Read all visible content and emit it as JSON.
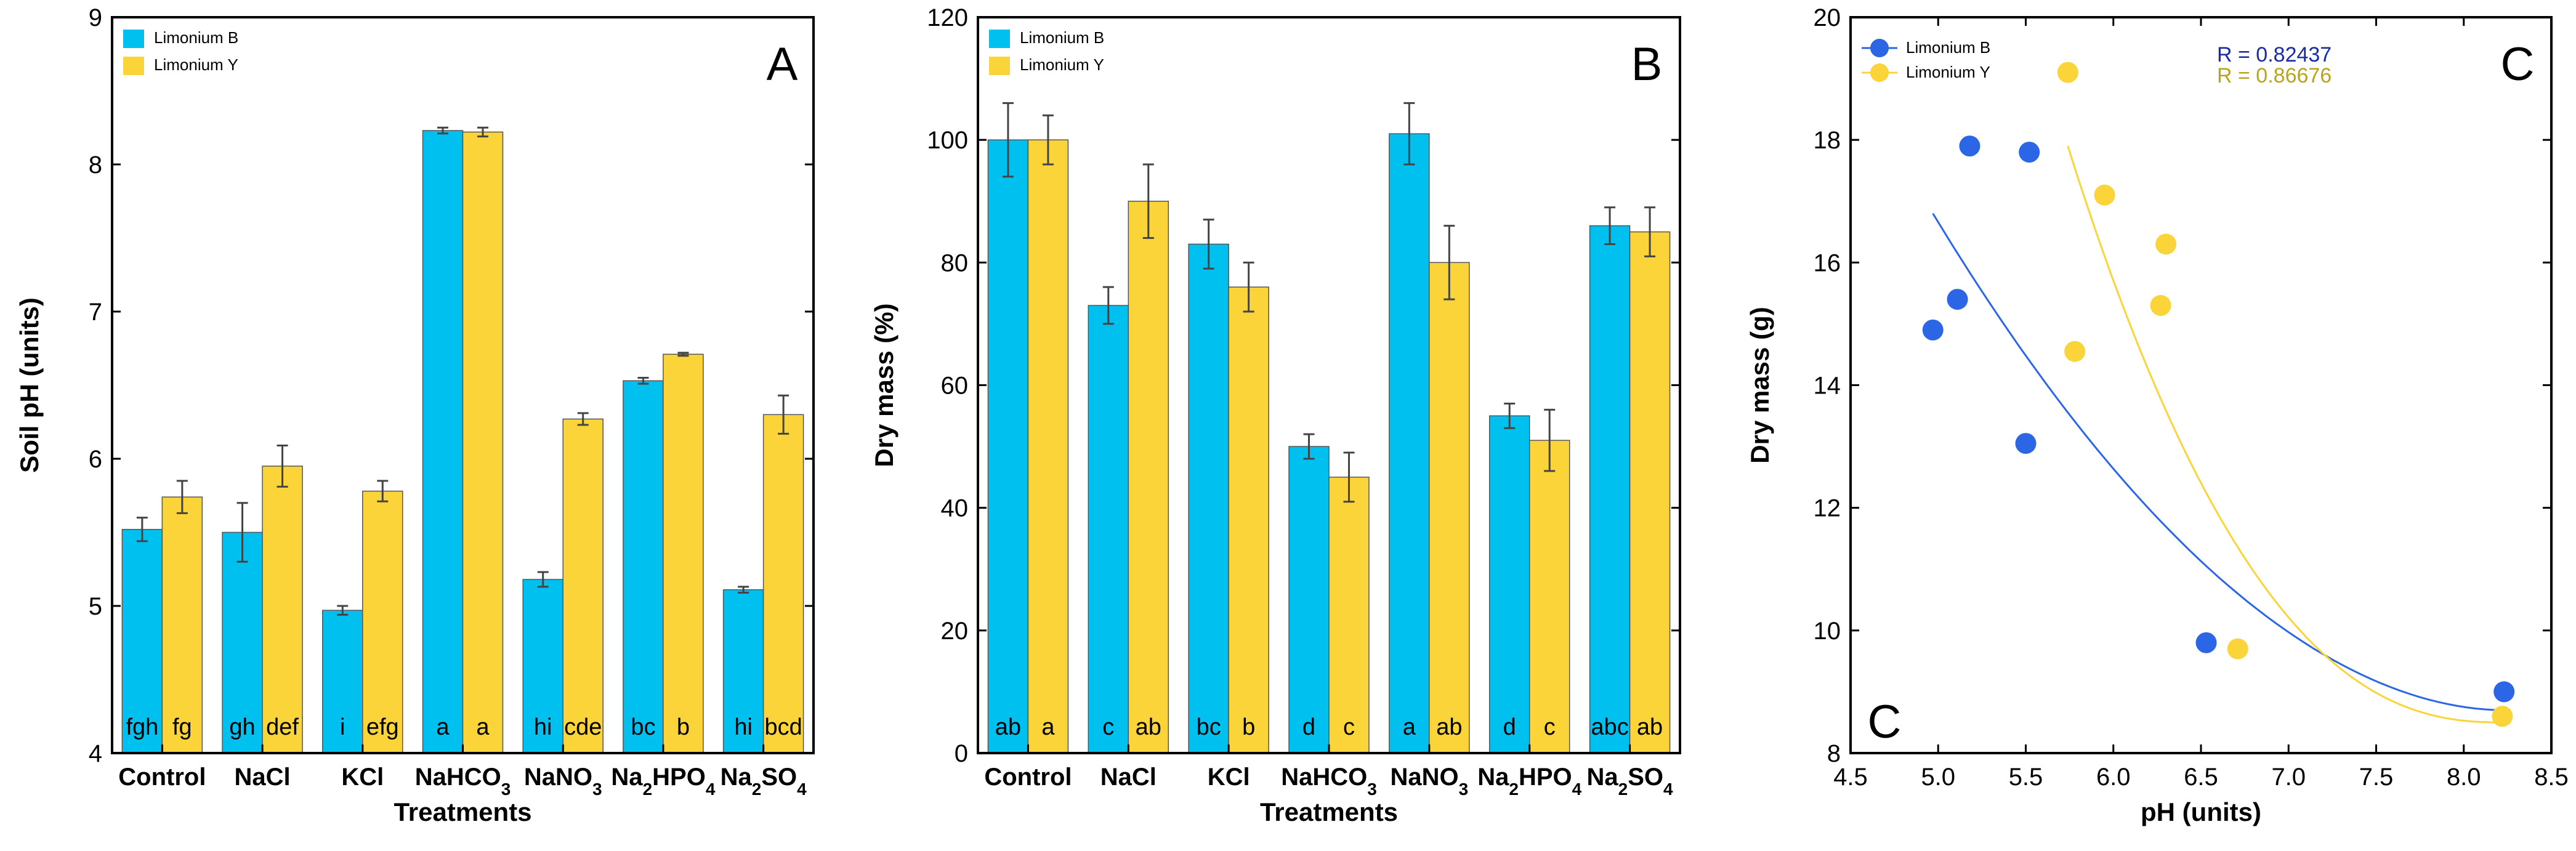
{
  "colors": {
    "limonium_b_bar": "#00C0F0",
    "limonium_y_bar": "#FAD438",
    "limonium_b_point": "#2A66E6",
    "limonium_y_point": "#FAD438",
    "r_b_text": "#1A2BA6",
    "r_y_text": "#B8A51C"
  },
  "chart_data": [
    {
      "panel": "A",
      "type": "bar",
      "title": "",
      "letter": "A",
      "xlabel": "Treatments",
      "ylabel": "Soil pH (units)",
      "ylim": [
        4,
        9
      ],
      "yticks": [
        4,
        5,
        6,
        7,
        8,
        9
      ],
      "yticklabels": [
        "4",
        "5",
        "6",
        "7",
        "8",
        "9"
      ],
      "legend_position": "top-left",
      "categories": [
        {
          "base": "Control",
          "parts": []
        },
        {
          "base": "NaCl",
          "parts": []
        },
        {
          "base": "KCl",
          "parts": []
        },
        {
          "base": "",
          "parts": [
            {
              "t": "NaHCO",
              "s": ""
            },
            {
              "t": "3",
              "s": "sub"
            }
          ]
        },
        {
          "base": "",
          "parts": [
            {
              "t": "NaNO",
              "s": ""
            },
            {
              "t": "3",
              "s": "sub"
            }
          ]
        },
        {
          "base": "",
          "parts": [
            {
              "t": "Na",
              "s": ""
            },
            {
              "t": "2",
              "s": "sub"
            },
            {
              "t": "HPO",
              "s": ""
            },
            {
              "t": "4",
              "s": "sub"
            }
          ]
        },
        {
          "base": "",
          "parts": [
            {
              "t": "Na",
              "s": ""
            },
            {
              "t": "2",
              "s": "sub"
            },
            {
              "t": "SO",
              "s": ""
            },
            {
              "t": "4",
              "s": "sub"
            }
          ]
        }
      ],
      "series": [
        {
          "name": "Limonium B",
          "values": [
            5.52,
            5.5,
            4.97,
            8.23,
            5.18,
            6.53,
            5.11
          ],
          "errors": [
            0.08,
            0.2,
            0.03,
            0.02,
            0.05,
            0.02,
            0.02
          ],
          "labels": [
            "fgh",
            "gh",
            "i",
            "a",
            "hi",
            "bc",
            "hi"
          ]
        },
        {
          "name": "Limonium Y",
          "values": [
            5.74,
            5.95,
            5.78,
            8.22,
            6.27,
            6.71,
            6.3
          ],
          "errors": [
            0.11,
            0.14,
            0.07,
            0.03,
            0.04,
            0.01,
            0.13
          ],
          "labels": [
            "fg",
            "def",
            "efg",
            "a",
            "cde",
            "b",
            "bcd"
          ]
        }
      ]
    },
    {
      "panel": "B",
      "type": "bar",
      "title": "",
      "letter": "B",
      "xlabel": "Treatments",
      "ylabel": "Dry mass (%)",
      "ylim": [
        0,
        120
      ],
      "yticks": [
        0,
        20,
        40,
        60,
        80,
        100,
        120
      ],
      "yticklabels": [
        "0",
        "20",
        "40",
        "60",
        "80",
        "100",
        "120"
      ],
      "legend_position": "top-left",
      "categories": [
        {
          "base": "Control",
          "parts": []
        },
        {
          "base": "NaCl",
          "parts": []
        },
        {
          "base": "KCl",
          "parts": []
        },
        {
          "base": "",
          "parts": [
            {
              "t": "NaHCO",
              "s": ""
            },
            {
              "t": "3",
              "s": "sub"
            }
          ]
        },
        {
          "base": "",
          "parts": [
            {
              "t": "NaNO",
              "s": ""
            },
            {
              "t": "3",
              "s": "sub"
            }
          ]
        },
        {
          "base": "",
          "parts": [
            {
              "t": "Na",
              "s": ""
            },
            {
              "t": "2",
              "s": "sub"
            },
            {
              "t": "HPO",
              "s": ""
            },
            {
              "t": "4",
              "s": "sub"
            }
          ]
        },
        {
          "base": "",
          "parts": [
            {
              "t": "Na",
              "s": ""
            },
            {
              "t": "2",
              "s": "sub"
            },
            {
              "t": "SO",
              "s": ""
            },
            {
              "t": "4",
              "s": "sub"
            }
          ]
        }
      ],
      "series": [
        {
          "name": "Limonium B",
          "values": [
            100,
            73,
            83,
            50,
            101,
            55,
            86
          ],
          "errors": [
            6,
            3,
            4,
            2,
            5,
            2,
            3
          ],
          "labels": [
            "ab",
            "c",
            "bc",
            "d",
            "a",
            "d",
            "abc"
          ]
        },
        {
          "name": "Limonium Y",
          "values": [
            100,
            90,
            76,
            45,
            80,
            51,
            85
          ],
          "errors": [
            4,
            6,
            4,
            4,
            6,
            5,
            4
          ],
          "labels": [
            "a",
            "ab",
            "b",
            "c",
            "ab",
            "c",
            "ab"
          ]
        }
      ]
    },
    {
      "panel": "C",
      "type": "scatter",
      "title": "",
      "letter_top": "C",
      "letter_bottom": "C",
      "xlabel": "pH (units)",
      "ylabel": "Dry mass (g)",
      "xlim": [
        4.5,
        8.5
      ],
      "ylim": [
        8,
        20
      ],
      "xticks": [
        4.5,
        5.0,
        5.5,
        6.0,
        6.5,
        7.0,
        7.5,
        8.0,
        8.5
      ],
      "xticklabels": [
        "4.5",
        "5.0",
        "5.5",
        "6.0",
        "6.5",
        "7.0",
        "7.5",
        "8.0",
        "8.5"
      ],
      "yticks": [
        8,
        10,
        12,
        14,
        16,
        18,
        20
      ],
      "yticklabels": [
        "8",
        "10",
        "12",
        "14",
        "16",
        "18",
        "20"
      ],
      "legend_position": "top-left",
      "series": [
        {
          "name": "Limonium B",
          "r_label": "R = 0.82437",
          "x": [
            4.97,
            5.11,
            5.18,
            5.5,
            5.52,
            6.53,
            8.23
          ],
          "y": [
            14.9,
            15.4,
            17.9,
            13.05,
            17.8,
            9.8,
            9.0
          ],
          "fit": {
            "x0": 4.97,
            "x1": 8.23,
            "y0": 16.8,
            "y1": 8.7,
            "shape": 1.9
          }
        },
        {
          "name": "Limonium Y",
          "r_label": "R = 0.86676",
          "x": [
            5.74,
            5.78,
            5.95,
            6.27,
            6.3,
            6.71,
            8.22
          ],
          "y": [
            19.1,
            14.55,
            17.1,
            15.3,
            16.3,
            9.7,
            8.6
          ],
          "fit": {
            "x0": 5.74,
            "x1": 8.22,
            "y0": 17.9,
            "y1": 8.5,
            "shape": 2.4
          }
        }
      ]
    }
  ]
}
